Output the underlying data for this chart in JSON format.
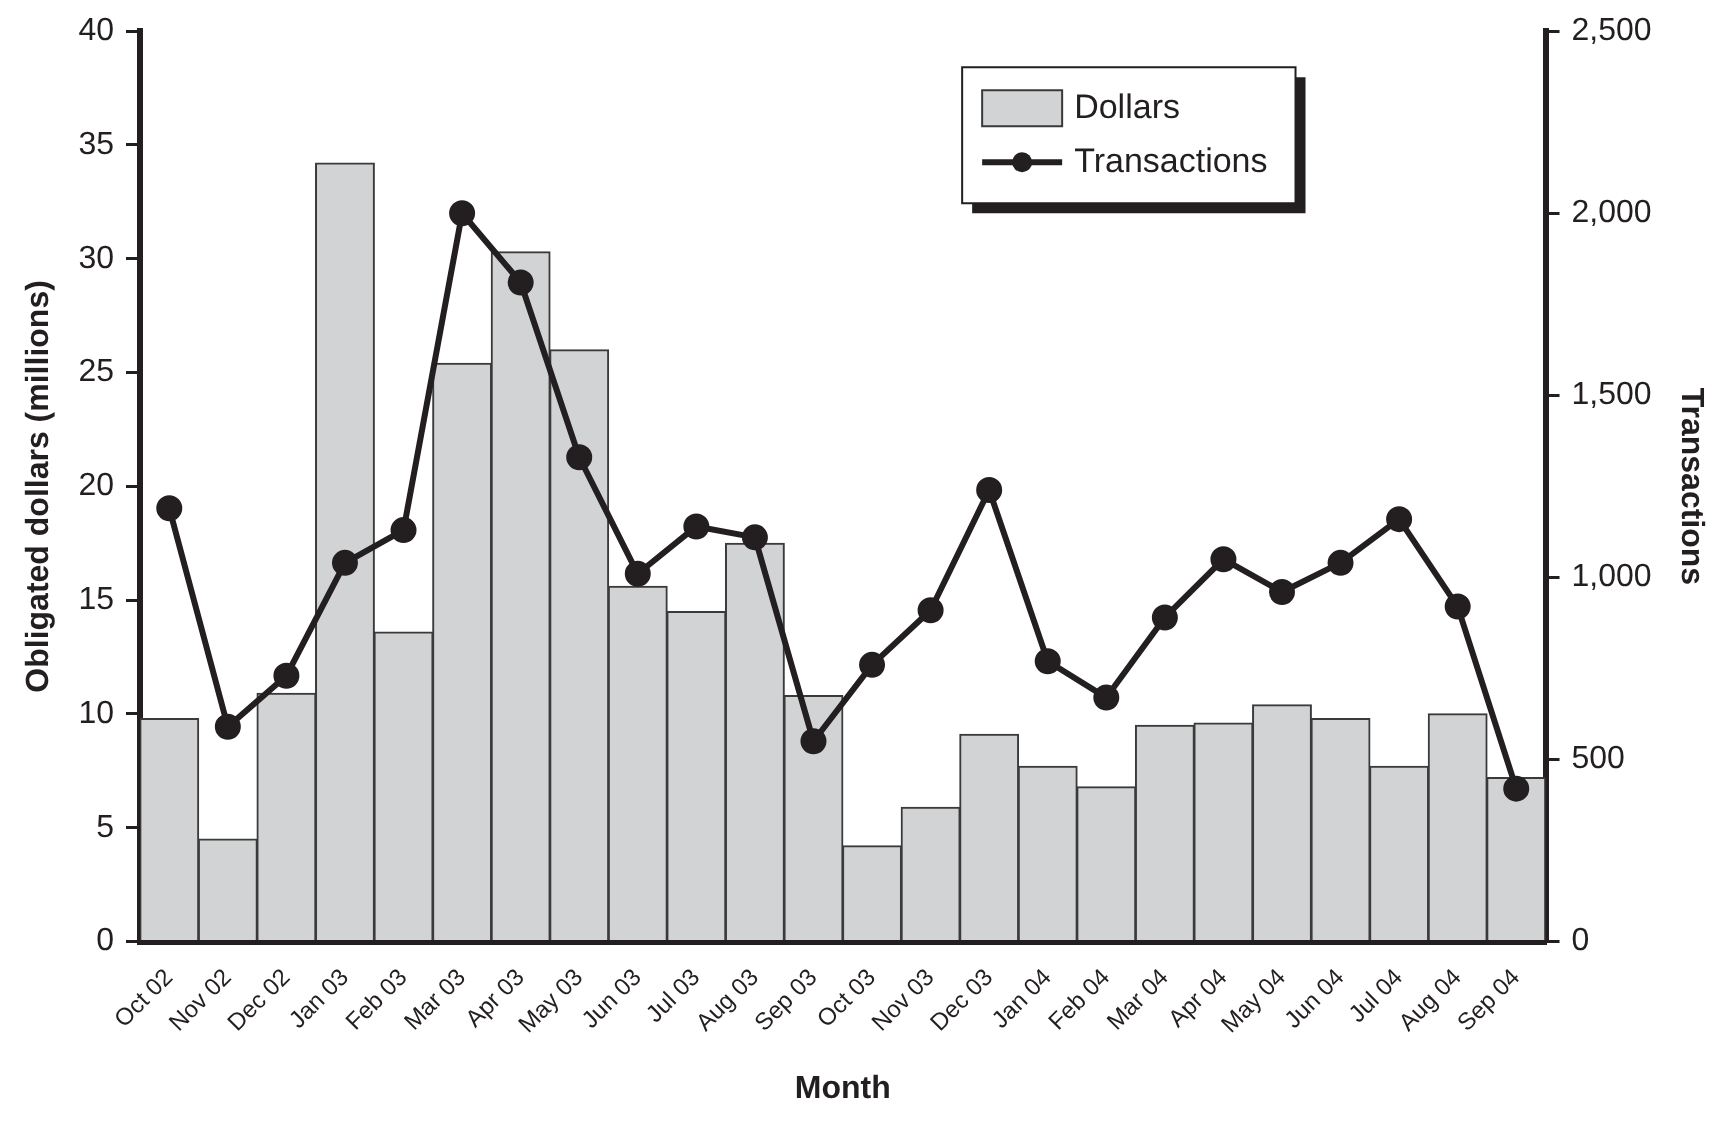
{
  "chart_data": {
    "type": "bar",
    "xlabel": "Month",
    "ylabel": "Obligated dollars (millions)",
    "y2label": "Transactions",
    "categories": [
      "Oct 02",
      "Nov 02",
      "Dec 02",
      "Jan 03",
      "Feb 03",
      "Mar 03",
      "Apr 03",
      "May 03",
      "Jun 03",
      "Jul 03",
      "Aug 03",
      "Sep 03",
      "Oct 03",
      "Nov 03",
      "Dec 03",
      "Jan 04",
      "Feb 04",
      "Mar 04",
      "Apr 04",
      "May 04",
      "Jun 04",
      "Jul 04",
      "Aug 04",
      "Sep 04"
    ],
    "series": [
      {
        "name": "Dollars",
        "color": "#d1d3d4",
        "values": [
          9.8,
          4.5,
          10.9,
          34.2,
          13.6,
          25.4,
          30.3,
          26.0,
          15.6,
          14.5,
          17.5,
          10.8,
          4.2,
          5.9,
          9.1,
          7.7,
          6.8,
          9.5,
          9.6,
          10.4,
          9.8,
          7.7,
          10.0,
          7.2
        ]
      },
      {
        "name": "Transactions",
        "type": "line",
        "axis": "y2",
        "color": "#231f20",
        "marker": "circle",
        "line_style": "solid",
        "values": [
          1190,
          590,
          730,
          1040,
          1130,
          2000,
          1810,
          1330,
          1010,
          1140,
          1110,
          550,
          760,
          910,
          1240,
          770,
          670,
          890,
          1050,
          960,
          1040,
          1160,
          920,
          420
        ]
      }
    ],
    "ylim": [
      0,
      40
    ],
    "yticks": [
      0,
      5,
      10,
      15,
      20,
      25,
      30,
      35,
      40
    ],
    "y2lim": [
      0,
      2500
    ],
    "y2ticks": [
      0,
      500,
      {
        "value": 1000,
        "label": "1,000"
      },
      {
        "value": 1500,
        "label": "1,500"
      },
      {
        "value": 2000,
        "label": "2,000"
      },
      {
        "value": 2500,
        "label": "2,500"
      }
    ],
    "grid": false,
    "legend": "top right"
  }
}
